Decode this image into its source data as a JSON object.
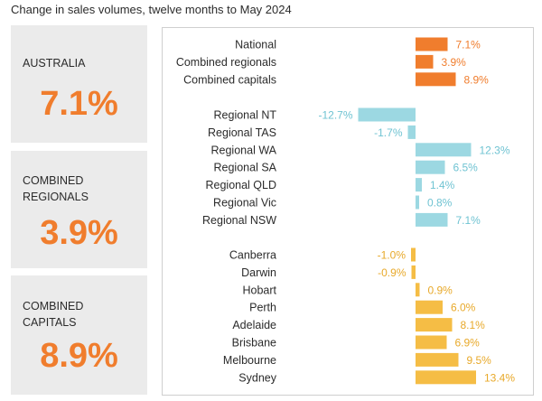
{
  "title": "Change in sales volumes, twelve months to May 2024",
  "cards": [
    {
      "label": "AUSTRALIA",
      "value": "7.1%"
    },
    {
      "label": "COMBINED REGIONALS",
      "value": "3.9%"
    },
    {
      "label": "COMBINED CAPITALS",
      "value": "8.9%"
    }
  ],
  "colors": {
    "summary": "#f07d2d",
    "regional": "#9cd8e2",
    "regional_text": "#6fc3d2",
    "capital": "#f5bd45",
    "capital_text": "#e8a92a"
  },
  "chart_data": {
    "type": "bar",
    "orientation": "horizontal",
    "xlim": [
      -14,
      15
    ],
    "groups": [
      {
        "name": "summary",
        "categories": [
          "National",
          "Combined regionals",
          "Combined capitals"
        ],
        "values": [
          7.1,
          3.9,
          8.9
        ],
        "labels": [
          "7.1%",
          "3.9%",
          "8.9%"
        ]
      },
      {
        "name": "regional",
        "categories": [
          "Regional NT",
          "Regional TAS",
          "Regional WA",
          "Regional SA",
          "Regional QLD",
          "Regional Vic",
          "Regional NSW"
        ],
        "values": [
          -12.7,
          -1.7,
          12.3,
          6.5,
          1.4,
          0.8,
          7.1
        ],
        "labels": [
          "-12.7%",
          "-1.7%",
          "12.3%",
          "6.5%",
          "1.4%",
          "0.8%",
          "7.1%"
        ]
      },
      {
        "name": "capital",
        "categories": [
          "Canberra",
          "Darwin",
          "Hobart",
          "Perth",
          "Adelaide",
          "Brisbane",
          "Melbourne",
          "Sydney"
        ],
        "values": [
          -1.0,
          -0.9,
          0.9,
          6.0,
          8.1,
          6.9,
          9.5,
          13.4
        ],
        "labels": [
          "-1.0%",
          "-0.9%",
          "0.9%",
          "6.0%",
          "8.1%",
          "6.9%",
          "9.5%",
          "13.4%"
        ]
      }
    ]
  }
}
